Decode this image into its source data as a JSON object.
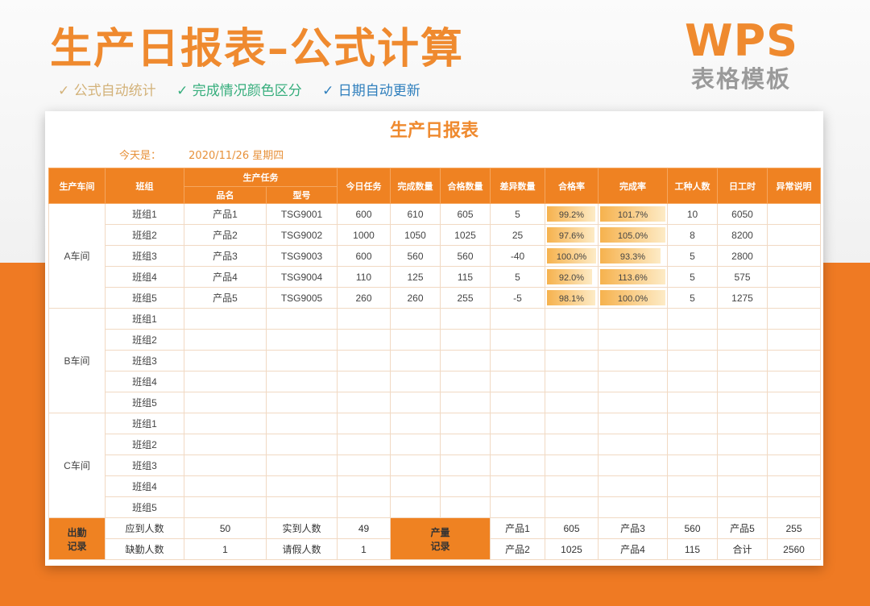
{
  "header": {
    "title": "生产日报表–公式计算",
    "brand": "WPS",
    "brand_sub": "表格模板",
    "features": [
      "✓ 公式自动统计",
      "✓ 完成情况颜色区分",
      "✓ 日期自动更新"
    ]
  },
  "sheet": {
    "title": "生产日报表",
    "date_label": "今天是：",
    "date_value": "2020/11/26 星期四"
  },
  "table": {
    "headers": {
      "workshop": "生产车间",
      "team": "班组",
      "task_group": "生产任务",
      "product": "品名",
      "model": "型号",
      "today_task": "今日任务",
      "done": "完成数量",
      "qualified": "合格数量",
      "diff": "差异数量",
      "pass_rate": "合格率",
      "done_rate": "完成率",
      "workers": "工种人数",
      "work_hours": "日工时",
      "note": "异常说明"
    },
    "workshops": [
      {
        "name": "A车间",
        "rows": [
          {
            "team": "班组1",
            "product": "产品1",
            "model": "TSG9001",
            "task": "600",
            "done": "610",
            "qualified": "605",
            "diff": "5",
            "pass_rate": "99.2%",
            "done_rate": "101.7%",
            "workers": "10",
            "hours": "6050",
            "tone": "g",
            "pass_pct": 99.2,
            "done_pct": 101.7
          },
          {
            "team": "班组2",
            "product": "产品2",
            "model": "TSG9002",
            "task": "1000",
            "done": "1050",
            "qualified": "1025",
            "diff": "25",
            "pass_rate": "97.6%",
            "done_rate": "105.0%",
            "workers": "8",
            "hours": "8200",
            "tone": "g",
            "pass_pct": 97.6,
            "done_pct": 105.0
          },
          {
            "team": "班组3",
            "product": "产品3",
            "model": "TSG9003",
            "task": "600",
            "done": "560",
            "qualified": "560",
            "diff": "-40",
            "pass_rate": "100.0%",
            "done_rate": "93.3%",
            "workers": "5",
            "hours": "2800",
            "tone": "r",
            "pass_pct": 100.0,
            "done_pct": 93.3
          },
          {
            "team": "班组4",
            "product": "产品4",
            "model": "TSG9004",
            "task": "110",
            "done": "125",
            "qualified": "115",
            "diff": "5",
            "pass_rate": "92.0%",
            "done_rate": "113.6%",
            "workers": "5",
            "hours": "575",
            "tone": "g",
            "pass_pct": 92.0,
            "done_pct": 113.6
          },
          {
            "team": "班组5",
            "product": "产品5",
            "model": "TSG9005",
            "task": "260",
            "done": "260",
            "qualified": "255",
            "diff": "-5",
            "pass_rate": "98.1%",
            "done_rate": "100.0%",
            "workers": "5",
            "hours": "1275",
            "tone": "r",
            "pass_pct": 98.1,
            "done_pct": 100.0
          }
        ]
      },
      {
        "name": "B车间",
        "rows": [
          {
            "team": "班组1"
          },
          {
            "team": "班组2"
          },
          {
            "team": "班组3"
          },
          {
            "team": "班组4"
          },
          {
            "team": "班组5"
          }
        ]
      },
      {
        "name": "C车间",
        "rows": [
          {
            "team": "班组1"
          },
          {
            "team": "班组2"
          },
          {
            "team": "班组3"
          },
          {
            "team": "班组4"
          },
          {
            "team": "班组5"
          }
        ]
      }
    ],
    "footer": {
      "attendance_tag": "出勤\n记录",
      "should": {
        "label": "应到人数",
        "value": "50"
      },
      "actual": {
        "label": "实到人数",
        "value": "49"
      },
      "absent": {
        "label": "缺勤人数",
        "value": "1"
      },
      "leave": {
        "label": "请假人数",
        "value": "1"
      },
      "output_tag": "产量\n记录",
      "outputs": [
        {
          "label": "产品1",
          "value": "605"
        },
        {
          "label": "产品3",
          "value": "560"
        },
        {
          "label": "产品5",
          "value": "255"
        },
        {
          "label": "产品2",
          "value": "1025"
        },
        {
          "label": "产品4",
          "value": "115"
        },
        {
          "label": "合计",
          "value": "2560"
        }
      ]
    }
  },
  "colors": {
    "accent": "#ef8222",
    "title": "#ef8a2f",
    "good": "#2ea47a",
    "bad": "#a83232"
  }
}
